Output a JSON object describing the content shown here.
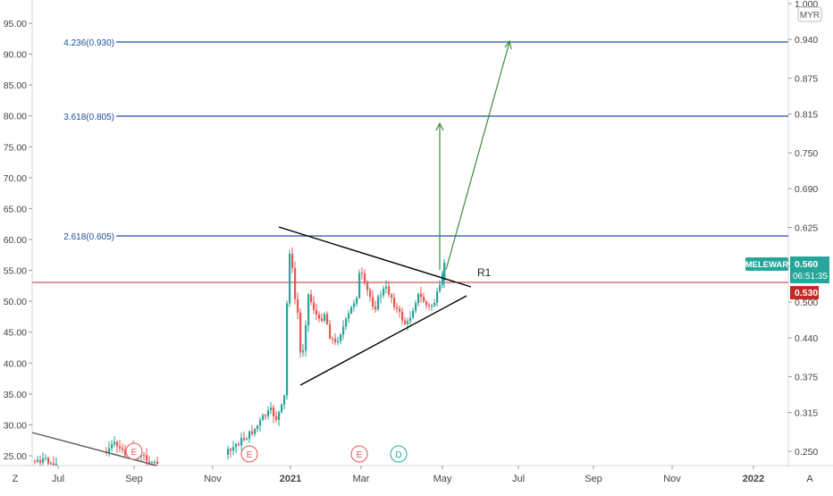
{
  "chart_data": {
    "type": "candlestick",
    "symbol": "MELEWAR",
    "currency": "MYR",
    "last_price": "0.560",
    "countdown": "06:51:35",
    "line_price": "0.530",
    "x_ticks": [
      "Jul",
      "Sep",
      "Nov",
      "2021",
      "Mar",
      "May",
      "Jul",
      "Sep",
      "Nov",
      "2022"
    ],
    "left_axis": {
      "ticks": [
        "25.00",
        "30.00",
        "35.00",
        "40.00",
        "45.00",
        "50.00",
        "55.00",
        "60.00",
        "65.00",
        "70.00",
        "75.00",
        "80.00",
        "85.00",
        "90.00",
        "95.00"
      ]
    },
    "right_axis": {
      "ticks": [
        "0.250",
        "0.315",
        "0.375",
        "0.440",
        "0.500",
        "0.560",
        "0.625",
        "0.690",
        "0.750",
        "0.815",
        "0.875",
        "0.940",
        "1.000"
      ],
      "range": [
        0.21,
        1.0
      ]
    },
    "fib_levels": [
      {
        "label": "4.236(0.930)",
        "value": 0.93
      },
      {
        "label": "3.618(0.805)",
        "value": 0.805
      },
      {
        "label": "2.618(0.605)",
        "value": 0.605
      }
    ],
    "resistance_label": "R1",
    "event_markers": [
      {
        "label": "E",
        "date": "2020-09",
        "color": "#e05555"
      },
      {
        "label": "E",
        "date": "2020-11",
        "color": "#e05555"
      },
      {
        "label": "E",
        "date": "2021-03",
        "color": "#e05555"
      },
      {
        "label": "D",
        "date": "2021-04",
        "color": "#26a69a"
      }
    ],
    "bottom_left_label": "Z",
    "bottom_right_label": "A",
    "colors": {
      "up": "#26a69a",
      "down": "#ef5350",
      "fib": "#1e4fa0",
      "price_line": "#c62828",
      "arrow": "#2e7d32",
      "trendline": "#000000",
      "symbol_badge": "#26a69a",
      "price_badge": "#c62828"
    }
  }
}
